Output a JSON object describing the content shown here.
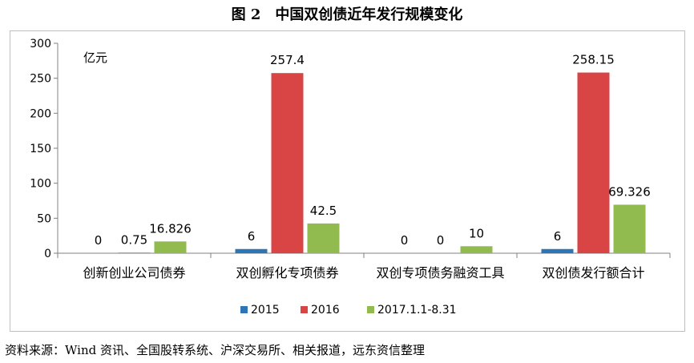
{
  "title": "图 2　中国双创债近年发行规模变化",
  "source": "资料来源：Wind 资讯、全国股转系统、沪深交易所、相关报道，远东资信整理",
  "chart_data": {
    "type": "bar",
    "unit_label": "亿元",
    "categories": [
      "创新创业公司债券",
      "双创孵化专项债券",
      "双创专项债务融资工具",
      "双创债发行额合计"
    ],
    "series": [
      {
        "name": "2015",
        "color": "#2e75b6",
        "values": [
          0,
          6,
          0,
          6
        ],
        "labels": [
          "0",
          "6",
          "0",
          "6"
        ]
      },
      {
        "name": "2016",
        "color": "#d94545",
        "values": [
          0.75,
          257.4,
          0,
          258.15
        ],
        "labels": [
          "0.75",
          "257.4",
          "0",
          "258.15"
        ]
      },
      {
        "name": "2017.1.1-8.31",
        "color": "#92bb4f",
        "values": [
          16.826,
          42.5,
          10,
          69.326
        ],
        "labels": [
          "16.826",
          "42.5",
          "10",
          "69.326"
        ]
      }
    ],
    "yticks": [
      "0",
      "50",
      "100",
      "150",
      "200",
      "250",
      "300"
    ],
    "ylim": [
      0,
      300
    ],
    "legend_position": "bottom",
    "grid": false
  }
}
